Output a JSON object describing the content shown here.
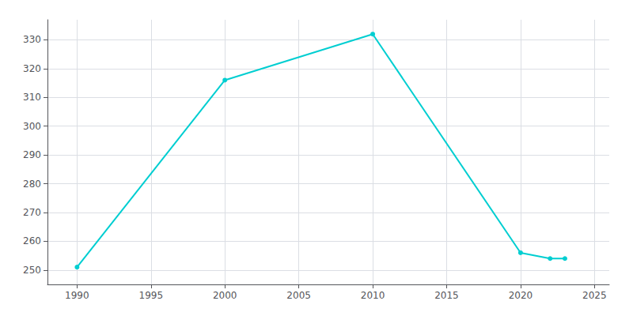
{
  "chart_data": {
    "type": "line",
    "x": [
      1990,
      2000,
      2010,
      2020,
      2022,
      2023
    ],
    "values": [
      251,
      316,
      332,
      256,
      254,
      254
    ],
    "color": "#00CED1",
    "marker": "circle",
    "xlim": [
      1988,
      2026
    ],
    "xticks": [
      1990,
      1995,
      2000,
      2005,
      2010,
      2015,
      2020,
      2025
    ],
    "ylim": [
      245,
      337
    ],
    "yticks": [
      250,
      260,
      270,
      280,
      290,
      300,
      310,
      320,
      330
    ],
    "grid": true
  }
}
